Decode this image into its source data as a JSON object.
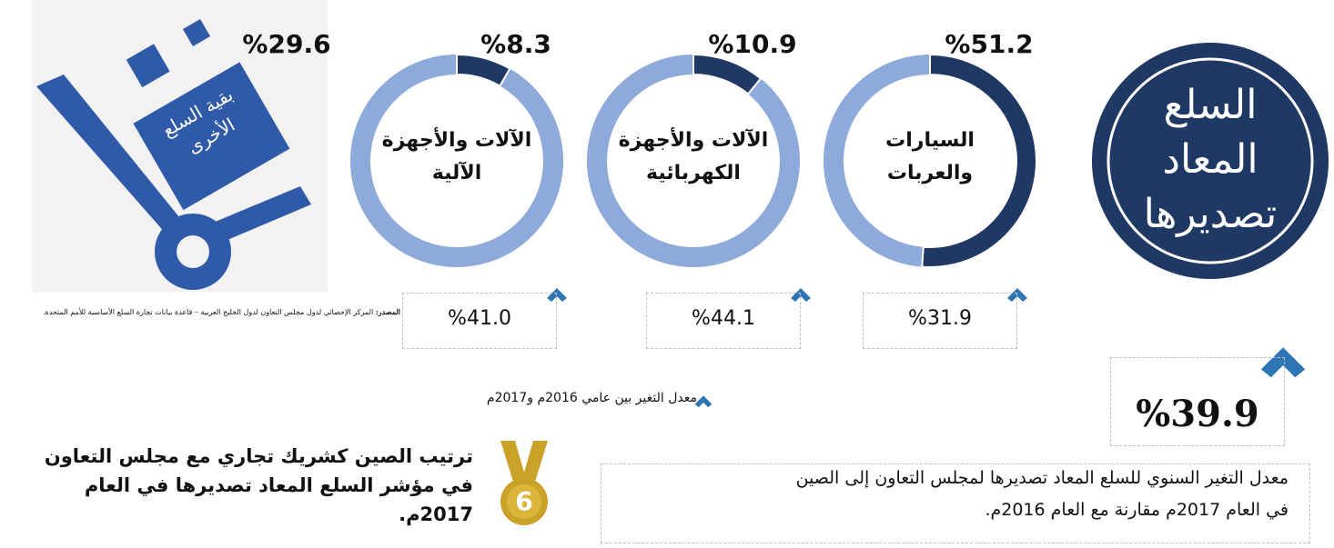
{
  "title_lines": [
    "السلع",
    "المعاد",
    "تصديرها"
  ],
  "donuts": [
    {
      "label_lines": [
        "السيارات",
        "والعربات"
      ],
      "share": 51.2,
      "share_label": "%51.2",
      "change": 31.9,
      "change_label": "%31.9"
    },
    {
      "label_lines": [
        "الآلات والأجهزة",
        "الكهربائية"
      ],
      "share": 10.9,
      "share_label": "%10.9",
      "change": 44.1,
      "change_label": "%44.1"
    },
    {
      "label_lines": [
        "الآلات والأجهزة",
        "الآلية"
      ],
      "share": 8.3,
      "share_label": "%8.3",
      "change": 41.0,
      "change_label": "%41.0"
    }
  ],
  "other": {
    "label_lines": [
      "بقية السلع",
      "الأخرى"
    ],
    "share": 29.6,
    "share_label": "%29.6"
  },
  "source": {
    "label": "المصدر:",
    "text": "المركز الإحصائي لدول مجلس التعاون لدول الخليج العربية – قاعدة بيانات تجارة السلع الأساسية للأمم المتحدة."
  },
  "legend": "معدل التغير بين عامي 2016م و2017م",
  "annual_change": {
    "value": 39.9,
    "label": "%39.9",
    "description_lines": [
      "معدل التغير السنوي للسلع المعاد تصديرها لمجلس التعاون إلى الصين",
      "في العام 2017م مقارنة مع العام 2016م."
    ]
  },
  "rank": {
    "value": 6,
    "text_lines": [
      "ترتيب الصين كشريك تجاري مع مجلس التعاون",
      "في مؤشر السلع المعاد تصديرها في العام",
      "2017م."
    ]
  }
}
